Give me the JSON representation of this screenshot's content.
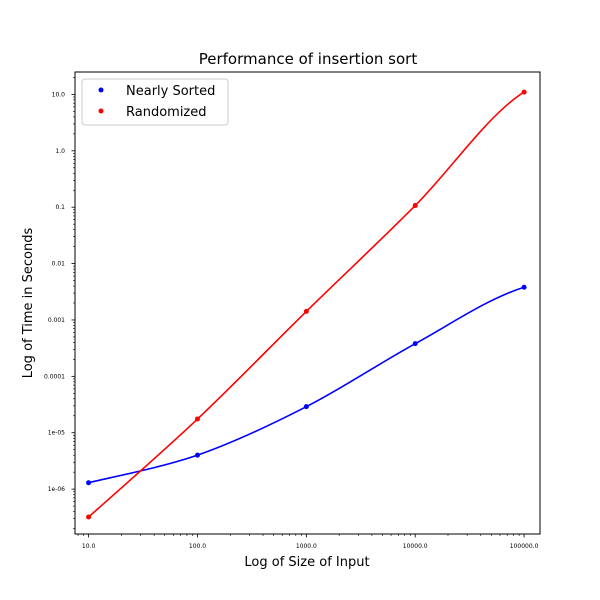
{
  "chart_data": {
    "type": "scatter",
    "title": "Performance of insertion sort",
    "xlabel": "Log of Size of Input",
    "ylabel": "Log of Time in Seconds",
    "x_scale": "log",
    "y_scale": "log",
    "xlim": [
      7.5,
      140000
    ],
    "ylim": [
      1.6e-07,
      25
    ],
    "x_ticks": [
      10,
      100,
      1000,
      10000,
      100000
    ],
    "x_tick_labels": [
      "10.0",
      "100.0",
      "1000.0",
      "10000.0",
      "100000.0"
    ],
    "y_ticks": [
      1e-06,
      1e-05,
      0.0001,
      0.001,
      0.01,
      0.1,
      1,
      10
    ],
    "y_tick_labels": [
      "1e-06",
      "1e-05",
      "0.0001",
      "0.001",
      "0.01",
      "0.1",
      "1.0",
      "10.0"
    ],
    "grid": false,
    "legend_position": "top-left",
    "x": [
      10,
      100,
      1000,
      10000,
      100000
    ],
    "series": [
      {
        "name": "Nearly Sorted",
        "color": "#0000ff",
        "values": [
          1.3e-06,
          4e-06,
          2.9e-05,
          0.00038,
          0.0038
        ],
        "fit_curve": true
      },
      {
        "name": "Randomized",
        "color": "#ff0000",
        "values": [
          3.2e-07,
          1.75e-05,
          0.00142,
          0.107,
          11.0
        ],
        "fit_curve": true
      }
    ]
  }
}
